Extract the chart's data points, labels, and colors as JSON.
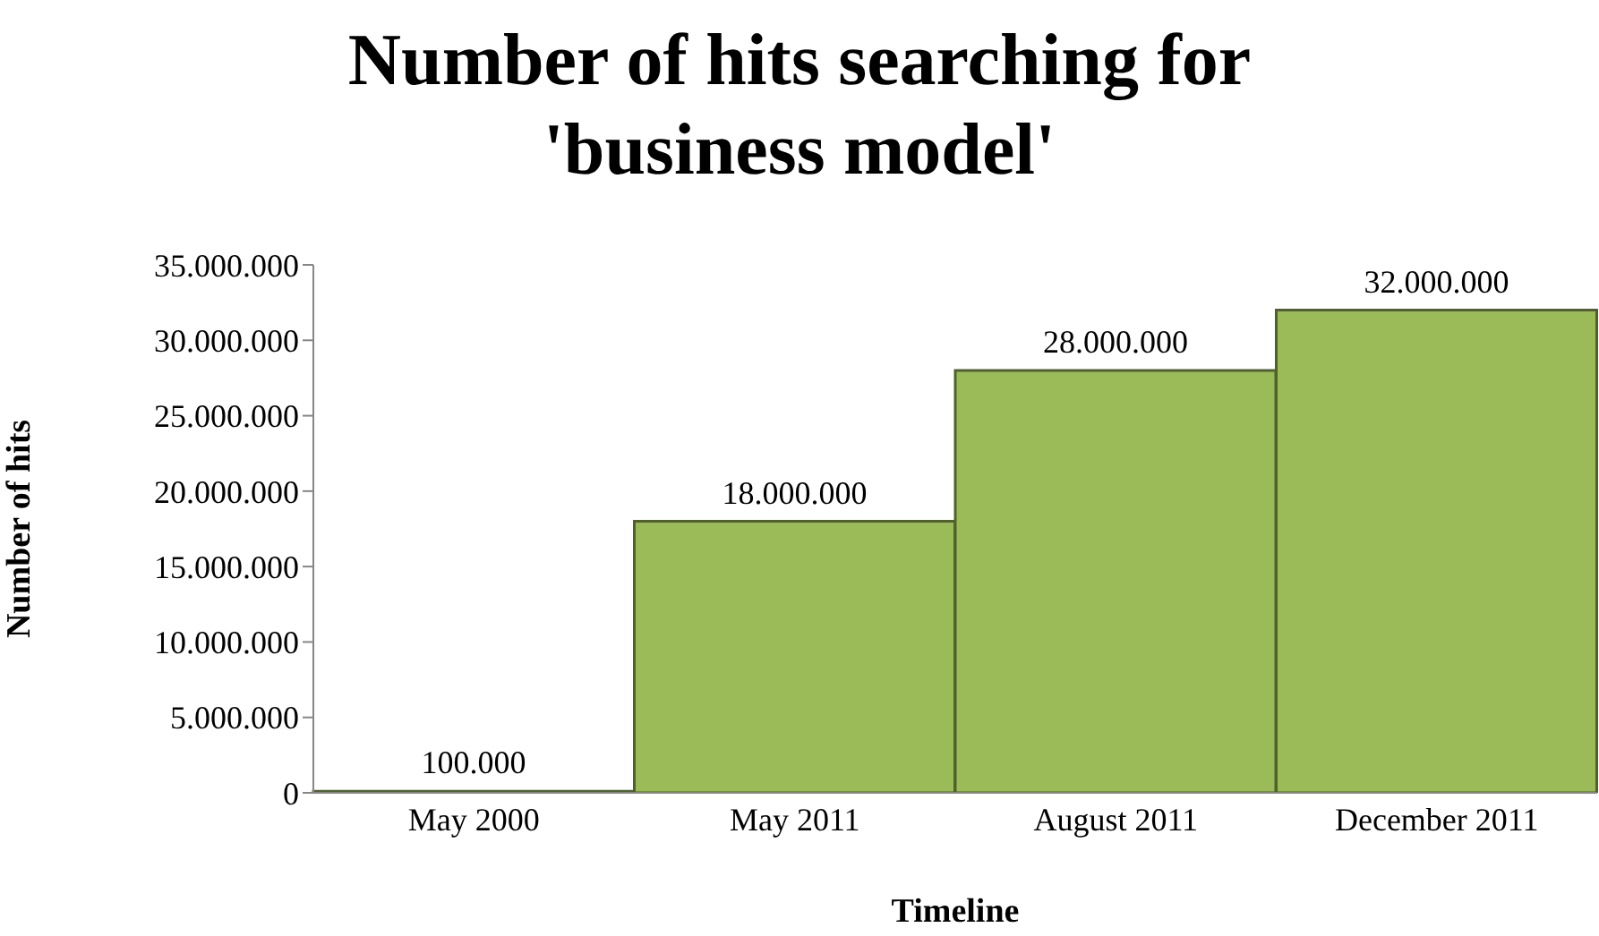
{
  "chart_data": {
    "type": "bar",
    "title": "Number of hits searching for 'business model'",
    "xlabel": "Timeline",
    "ylabel": "Number of hits",
    "categories": [
      "May 2000",
      "May 2011",
      "August 2011",
      "December 2011"
    ],
    "values": [
      100000,
      18000000,
      28000000,
      32000000
    ],
    "value_labels": [
      "100.000",
      "18.000.000",
      "28.000.000",
      "32.000.000"
    ],
    "color": "#9bbb59",
    "ylim": [
      0,
      35000000
    ],
    "yticks": [
      {
        "value": 0,
        "label": "0"
      },
      {
        "value": 5000000,
        "label": "5.000.000"
      },
      {
        "value": 10000000,
        "label": "10.000.000"
      },
      {
        "value": 15000000,
        "label": "15.000.000"
      },
      {
        "value": 20000000,
        "label": "20.000.000"
      },
      {
        "value": 25000000,
        "label": "25.000.000"
      },
      {
        "value": 30000000,
        "label": "30.000.000"
      },
      {
        "value": 35000000,
        "label": "35.000.000"
      }
    ],
    "grid": false,
    "legend": false
  }
}
